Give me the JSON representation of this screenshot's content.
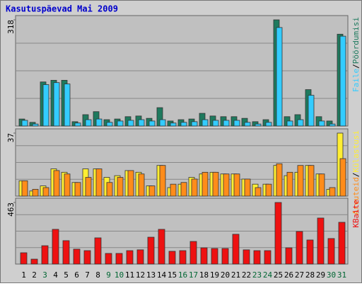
{
  "chart_data": [
    {
      "type": "bar",
      "title": "Kasutuspäevad Mai 2009",
      "categories": [
        "1",
        "2",
        "3",
        "4",
        "5",
        "6",
        "7",
        "8",
        "9",
        "10",
        "11",
        "12",
        "13",
        "14",
        "15",
        "16",
        "17",
        "18",
        "19",
        "20",
        "21",
        "22",
        "23",
        "24",
        "25",
        "26",
        "27",
        "28",
        "29",
        "30",
        "31"
      ],
      "category_colors": [
        "#000000",
        "#000000",
        "#006633",
        "#000000",
        "#000000",
        "#000000",
        "#000000",
        "#000000",
        "#006633",
        "#006633",
        "#000000",
        "#000000",
        "#000000",
        "#000000",
        "#000000",
        "#006633",
        "#006633",
        "#000000",
        "#000000",
        "#000000",
        "#000000",
        "#000000",
        "#006633",
        "#006633",
        "#000000",
        "#000000",
        "#000000",
        "#000000",
        "#000000",
        "#006633",
        "#006633"
      ],
      "ylim": [
        0,
        318
      ],
      "yticks": [
        318
      ],
      "series": [
        {
          "name": "Pöördumisi",
          "color": "#1e7a5e",
          "values": [
            21,
            11,
            132,
            137,
            137,
            13,
            34,
            43,
            19,
            21,
            28,
            30,
            23,
            55,
            15,
            19,
            21,
            38,
            30,
            28,
            28,
            23,
            13,
            19,
            318,
            28,
            34,
            109,
            28,
            15,
            275
          ]
        },
        {
          "name": "Faile",
          "color": "#33ccff",
          "values": [
            17,
            6,
            124,
            130,
            126,
            9,
            19,
            21,
            11,
            15,
            17,
            19,
            15,
            19,
            9,
            11,
            13,
            19,
            17,
            17,
            17,
            11,
            6,
            11,
            295,
            15,
            19,
            92,
            15,
            6,
            269
          ]
        }
      ]
    },
    {
      "type": "bar",
      "ylim": [
        0,
        37
      ],
      "yticks": [
        37
      ],
      "series": [
        {
          "name": "Külastusi",
          "color": "#ffee33",
          "values": [
            9,
            3,
            6,
            16,
            14,
            8,
            16,
            16,
            11,
            12,
            15,
            14,
            6,
            18,
            5,
            7,
            11,
            13,
            14,
            13,
            13,
            10,
            7,
            7,
            18,
            12,
            14,
            18,
            13,
            4,
            37
          ]
        },
        {
          "name": "Arvuteid",
          "color": "#ff8c1a",
          "values": [
            9,
            4,
            5,
            15,
            13,
            8,
            11,
            16,
            8,
            11,
            15,
            13,
            6,
            18,
            7,
            8,
            10,
            14,
            14,
            13,
            13,
            10,
            5,
            7,
            19,
            14,
            18,
            18,
            13,
            5,
            22
          ]
        }
      ]
    },
    {
      "type": "bar",
      "ylim": [
        0,
        463
      ],
      "yticks": [
        463
      ],
      "series": [
        {
          "name": "KBaite",
          "color": "#ee1111",
          "values": [
            85,
            37,
            138,
            261,
            176,
            112,
            101,
            197,
            80,
            80,
            101,
            107,
            202,
            261,
            96,
            101,
            170,
            122,
            117,
            117,
            224,
            107,
            101,
            101,
            463,
            122,
            245,
            181,
            346,
            192,
            314
          ]
        }
      ]
    }
  ]
}
